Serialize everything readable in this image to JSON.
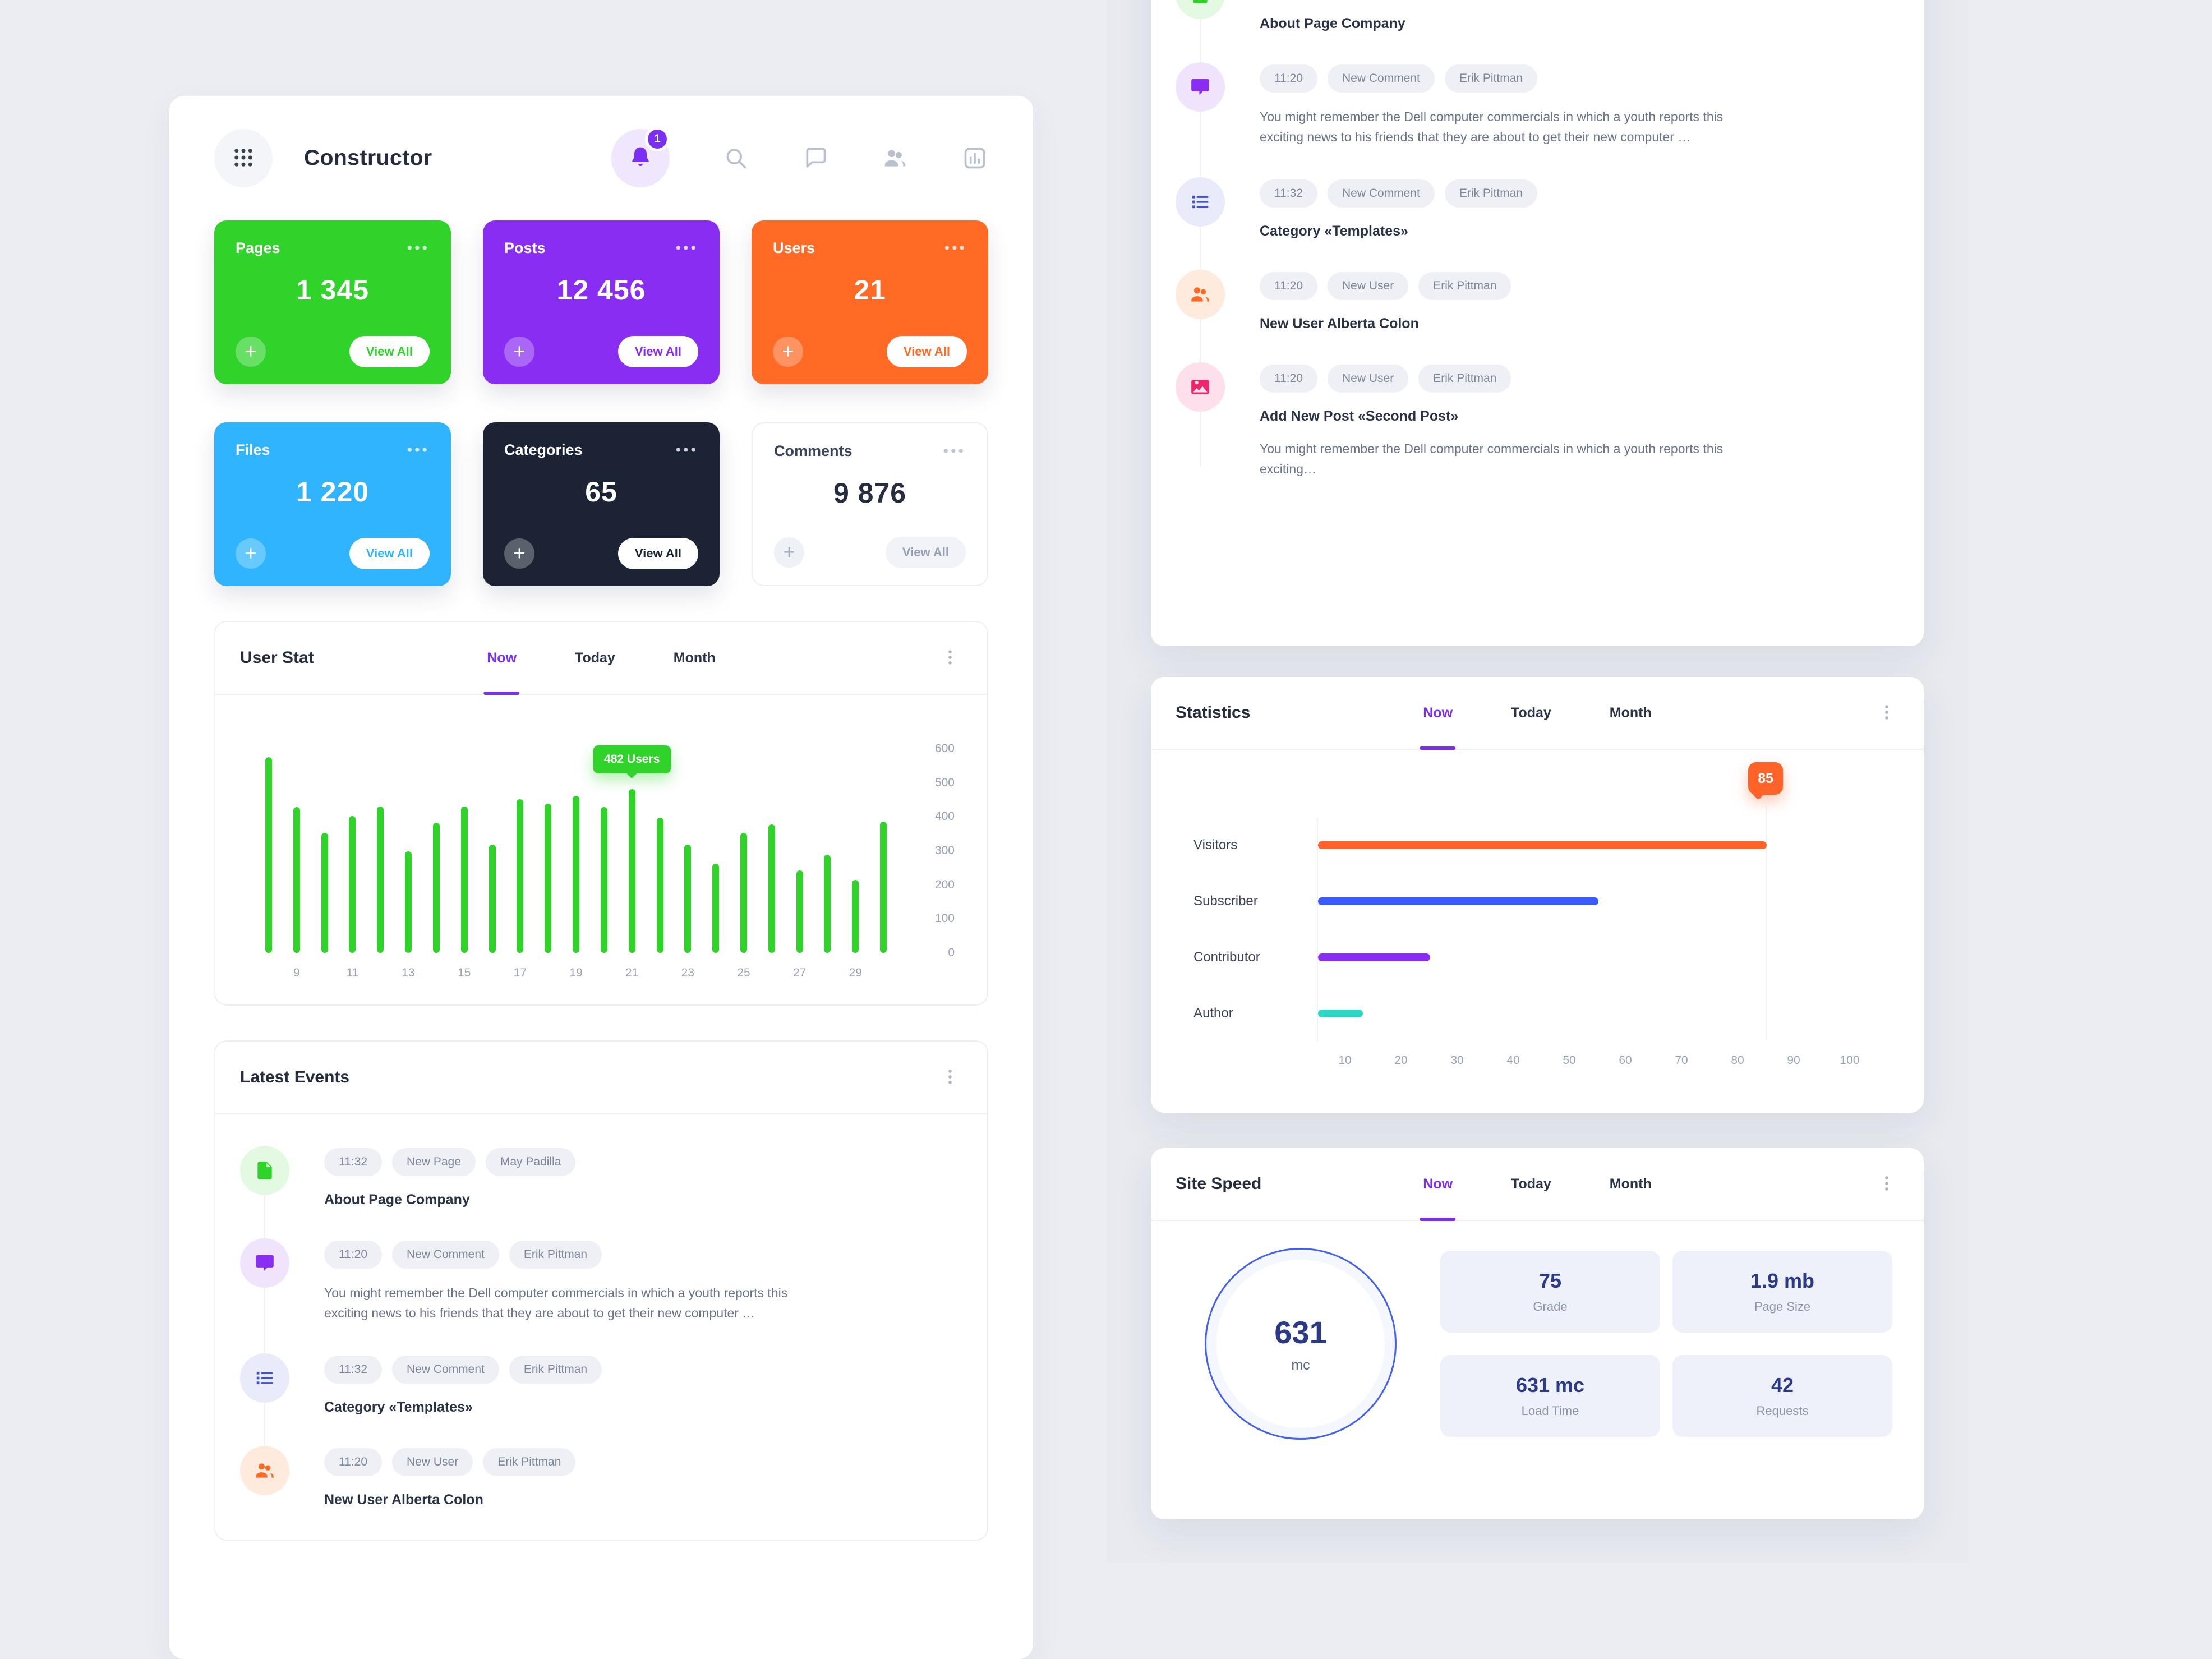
{
  "header": {
    "title": "Constructor",
    "badge": "1",
    "icons": [
      "grid-icon",
      "bell-icon",
      "search-icon",
      "chat-icon",
      "users-icon",
      "analytics-icon"
    ]
  },
  "stat_cards": [
    {
      "label": "Pages",
      "value": "1 345",
      "action": "View All",
      "color": "#2fd32a"
    },
    {
      "label": "Posts",
      "value": "12 456",
      "action": "View All",
      "color": "#8a2df2"
    },
    {
      "label": "Users",
      "value": "21",
      "action": "View All",
      "color": "#ff6a24"
    },
    {
      "label": "Files",
      "value": "1 220",
      "action": "View All",
      "color": "#2fb4fd"
    },
    {
      "label": "Categories",
      "value": "65",
      "action": "View All",
      "color": "#1b2334"
    },
    {
      "label": "Comments",
      "value": "9 876",
      "action": "View All",
      "color": "#ffffff",
      "light": true
    }
  ],
  "user_stat": {
    "title": "User Stat",
    "tabs": [
      "Now",
      "Today",
      "Month"
    ],
    "active_tab": "Now",
    "tooltip": "482 Users",
    "chart": {
      "type": "bar",
      "bar_color": "#2fd32a",
      "ymax": 600,
      "tooltip_index": 13,
      "values": [
        575,
        428,
        352,
        402,
        430,
        298,
        383,
        430,
        318,
        452,
        438,
        462,
        428,
        482,
        398,
        318,
        262,
        352,
        378,
        242,
        288,
        215,
        385
      ],
      "xlabels": [
        "9",
        "11",
        "13",
        "15",
        "17",
        "19",
        "21",
        "23",
        "25",
        "27",
        "29"
      ],
      "ylabels": [
        0,
        100,
        200,
        300,
        400,
        500,
        600
      ]
    }
  },
  "latest_events": {
    "title": "Latest Events"
  },
  "events": [
    {
      "icon": "page",
      "color": "#2fd32a",
      "bg": "#e3f9e2",
      "time": "11:32",
      "type": "New Page",
      "user": "May Padilla",
      "title": "About Page Company"
    },
    {
      "icon": "comment",
      "color": "#8a2df2",
      "bg": "#f0e4fd",
      "time": "11:20",
      "type": "New Comment",
      "user": "Erik Pittman",
      "body": "You might remember the Dell computer commercials in which a youth reports this exciting news to his friends that they are about to get their new computer …"
    },
    {
      "icon": "list",
      "color": "#4253c9",
      "bg": "#e9ebfa",
      "time": "11:32",
      "type": "New Comment",
      "user": "Erik Pittman",
      "title": "Category «Templates»"
    },
    {
      "icon": "users",
      "color": "#ff6a24",
      "bg": "#ffeade",
      "time": "11:20",
      "type": "New User",
      "user": "Erik Pittman",
      "title": "New User Alberta Colon"
    },
    {
      "icon": "image",
      "color": "#f0266d",
      "bg": "#fde0eb",
      "time": "11:20",
      "type": "New User",
      "user": "Erik Pittman",
      "title": "Add New Post «Second Post»",
      "body": "You might remember the Dell computer commercials in which a youth reports this exciting…"
    }
  ],
  "statistics": {
    "title": "Statistics",
    "tabs": [
      "Now",
      "Today",
      "Month"
    ],
    "active_tab": "Now",
    "tooltip": "85",
    "tooltip_value": 85,
    "chart": {
      "type": "bar",
      "orientation": "horizontal",
      "xlim": [
        0,
        100
      ],
      "ticks": [
        10,
        20,
        30,
        40,
        50,
        60,
        70,
        80,
        90,
        100
      ],
      "rows": [
        {
          "label": "Visitors",
          "value": 85,
          "color": "#ff6328"
        },
        {
          "label": "Subscriber",
          "value": 55,
          "color": "#3b5bfd"
        },
        {
          "label": "Contributor",
          "value": 25,
          "color": "#8a2df2"
        },
        {
          "label": "Author",
          "value": 13,
          "color": "#2fd6c3"
        }
      ]
    }
  },
  "site_speed": {
    "title": "Site Speed",
    "tabs": [
      "Now",
      "Today",
      "Month"
    ],
    "active_tab": "Now",
    "gauge": {
      "value": "631",
      "unit": "mc"
    },
    "tiles": [
      {
        "value": "75",
        "label": "Grade"
      },
      {
        "value": "1.9 mb",
        "label": "Page Size"
      },
      {
        "value": "631 mc",
        "label": "Load Time"
      },
      {
        "value": "42",
        "label": "Requests"
      }
    ]
  }
}
